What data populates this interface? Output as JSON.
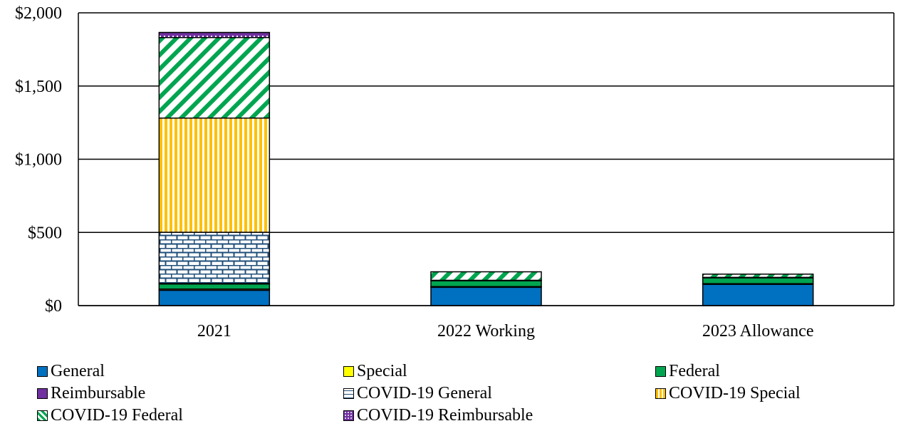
{
  "chart_data": {
    "type": "bar",
    "stacked": true,
    "categories": [
      "2021",
      "2022 Working",
      "2023 Allowance"
    ],
    "ylim": [
      0,
      2000
    ],
    "yticks": [
      "$0",
      "$500",
      "$1,000",
      "$1,500",
      "$2,000"
    ],
    "ytick_values": [
      0,
      500,
      1000,
      1500,
      2000
    ],
    "grid": true,
    "legend_position": "bottom",
    "series": [
      {
        "name": "General",
        "values": [
          105,
          125,
          145
        ],
        "color": "#0070C0",
        "pattern": "solid"
      },
      {
        "name": "Special",
        "values": [
          8,
          5,
          5
        ],
        "color": "#FFFF00",
        "pattern": "solid"
      },
      {
        "name": "Federal",
        "values": [
          35,
          40,
          40
        ],
        "color": "#00A550",
        "pattern": "solid"
      },
      {
        "name": "Reimbursable",
        "values": [
          3,
          3,
          3
        ],
        "color": "#7030A0",
        "pattern": "solid"
      },
      {
        "name": "COVID-19 General",
        "values": [
          350,
          0,
          0
        ],
        "color": "#1F4E79",
        "pattern": "brick"
      },
      {
        "name": "COVID-19 Special",
        "values": [
          780,
          0,
          0
        ],
        "color": "#FFC000",
        "pattern": "vertical"
      },
      {
        "name": "COVID-19 Federal",
        "values": [
          550,
          58,
          22
        ],
        "color": "#00A550",
        "pattern": "diagonal"
      },
      {
        "name": "COVID-19 Reimbursable",
        "values": [
          35,
          0,
          0
        ],
        "color": "#7030A0",
        "pattern": "dots"
      }
    ]
  }
}
